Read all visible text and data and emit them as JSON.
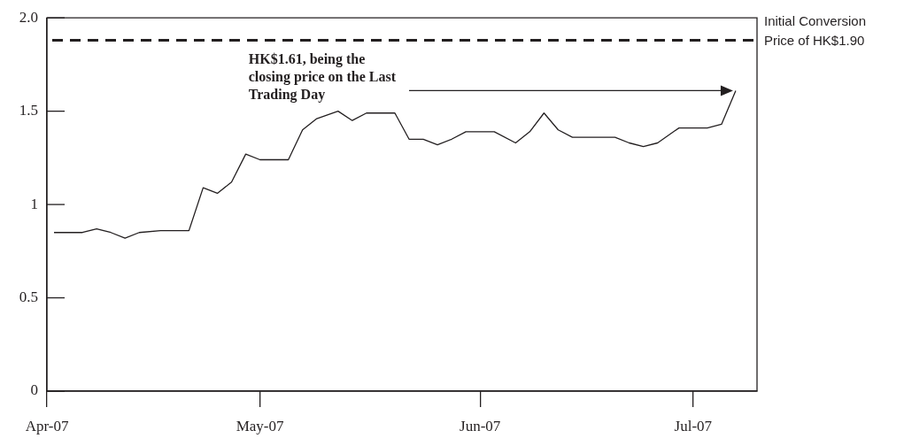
{
  "chart_data": {
    "type": "line",
    "x": [
      "2007-04-02",
      "2007-04-04",
      "2007-04-06",
      "2007-04-08",
      "2007-04-10",
      "2007-04-12",
      "2007-04-14",
      "2007-04-17",
      "2007-04-19",
      "2007-04-21",
      "2007-04-23",
      "2007-04-25",
      "2007-04-27",
      "2007-04-29",
      "2007-05-01",
      "2007-05-03",
      "2007-05-05",
      "2007-05-07",
      "2007-05-09",
      "2007-05-12",
      "2007-05-14",
      "2007-05-16",
      "2007-05-18",
      "2007-05-20",
      "2007-05-22",
      "2007-05-24",
      "2007-05-26",
      "2007-05-28",
      "2007-05-30",
      "2007-06-01",
      "2007-06-03",
      "2007-06-06",
      "2007-06-08",
      "2007-06-10",
      "2007-06-12",
      "2007-06-14",
      "2007-06-16",
      "2007-06-18",
      "2007-06-20",
      "2007-06-22",
      "2007-06-24",
      "2007-06-26",
      "2007-06-29",
      "2007-07-01",
      "2007-07-03",
      "2007-07-05",
      "2007-07-07"
    ],
    "series": [
      {
        "color": "#231f20",
        "values": [
          0.85,
          0.85,
          0.85,
          0.87,
          0.85,
          0.82,
          0.85,
          0.86,
          0.86,
          0.86,
          1.09,
          1.06,
          1.12,
          1.27,
          1.24,
          1.24,
          1.24,
          1.4,
          1.46,
          1.5,
          1.45,
          1.49,
          1.49,
          1.49,
          1.35,
          1.35,
          1.32,
          1.35,
          1.39,
          1.39,
          1.39,
          1.33,
          1.39,
          1.49,
          1.4,
          1.36,
          1.36,
          1.36,
          1.36,
          1.33,
          1.31,
          1.33,
          1.41,
          1.41,
          1.41,
          1.43,
          1.61
        ]
      }
    ],
    "xlim": [
      "2007-04-01",
      "2007-07-10"
    ],
    "xticks": [
      {
        "value": "2007-04-01",
        "label": "Apr-07"
      },
      {
        "value": "2007-05-01",
        "label": "May-07"
      },
      {
        "value": "2007-06-01",
        "label": "Jun-07"
      },
      {
        "value": "2007-07-01",
        "label": "Jul-07"
      }
    ],
    "ylim": [
      0,
      2
    ],
    "yticks": [
      0,
      0.5,
      1,
      1.5,
      {
        "value": 2,
        "label": "2.0"
      }
    ],
    "grid": false,
    "legend": false,
    "marker": "none",
    "line_style": "solid",
    "ref_lines": [
      {
        "axis": "y",
        "value": 1.88,
        "label": "Initial Conversion Price of HK$1.90",
        "color": "#231f20",
        "line_style": "dashed"
      }
    ],
    "annotations": [
      "HK$1.61, being the closing price on the Last Trading Day"
    ]
  }
}
